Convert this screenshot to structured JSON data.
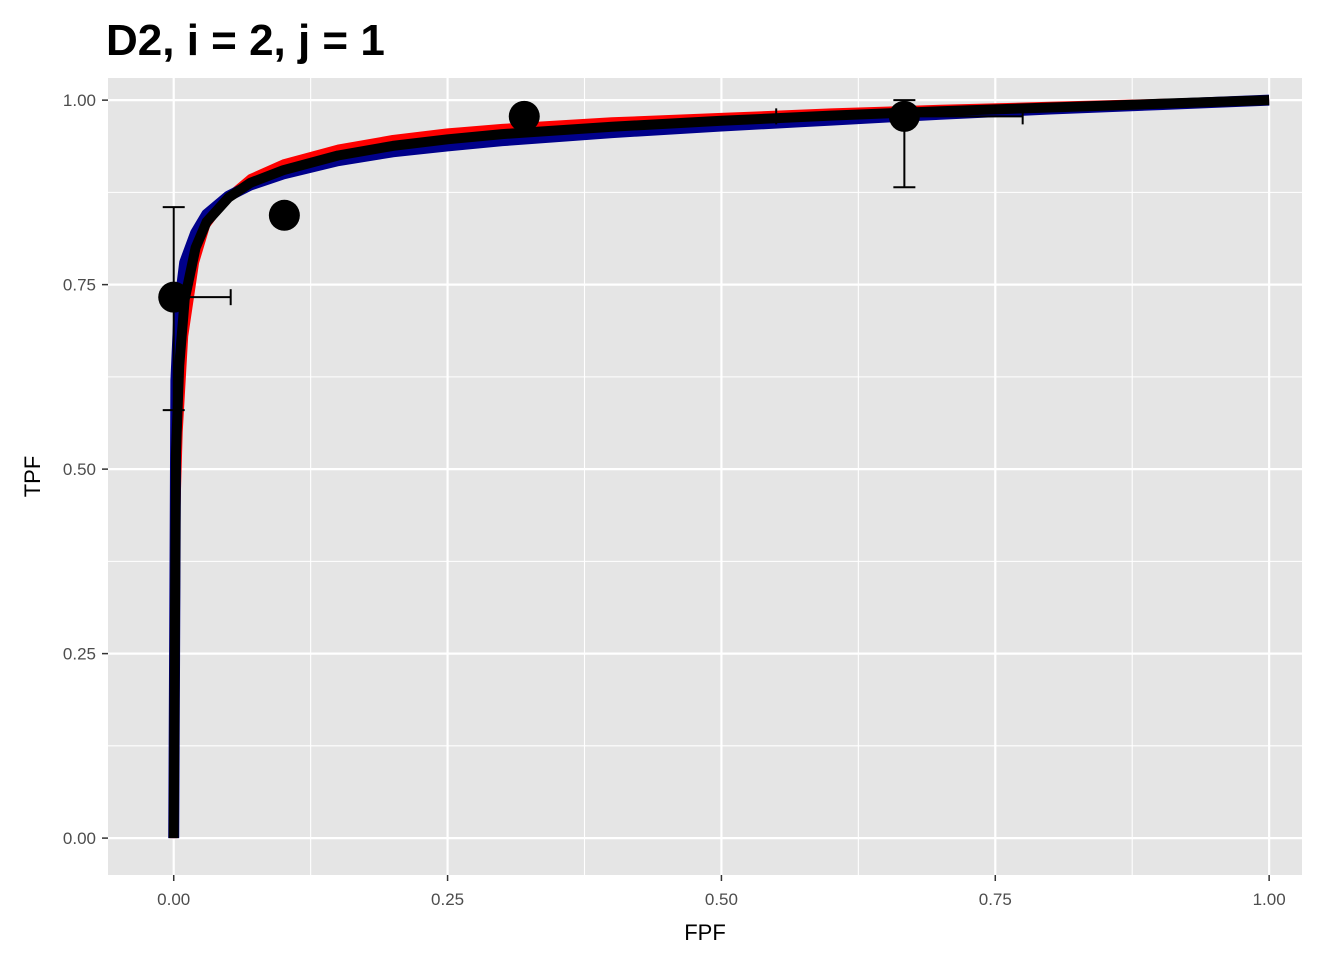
{
  "chart_data": {
    "type": "line",
    "title": "D2, i = 2, j = 1",
    "xlabel": "FPF",
    "ylabel": "TPF",
    "xlim": [
      -0.06,
      1.03
    ],
    "ylim": [
      -0.05,
      1.03
    ],
    "x_ticks": [
      0.0,
      0.25,
      0.5,
      0.75,
      1.0
    ],
    "x_tick_labels": [
      "0.00",
      "0.25",
      "0.50",
      "0.75",
      "1.00"
    ],
    "y_ticks": [
      0.0,
      0.25,
      0.5,
      0.75,
      1.0
    ],
    "y_tick_labels": [
      "0.00",
      "0.25",
      "0.50",
      "0.75",
      "1.00"
    ],
    "grid": true,
    "legend": "none",
    "colors": {
      "panel_background": "#e5e5e5",
      "grid_line": "#ffffff",
      "red_curve": "#ff0000",
      "blue_curve": "#00008b",
      "black_curve": "#000000",
      "points": "#000000"
    },
    "series": [
      {
        "color": "#ff0000",
        "x": [
          0.0,
          0.002,
          0.005,
          0.01,
          0.02,
          0.03,
          0.05,
          0.07,
          0.1,
          0.15,
          0.2,
          0.25,
          0.3,
          0.4,
          0.5,
          0.6,
          0.7,
          0.8,
          0.9,
          1.0
        ],
        "y": [
          0.0,
          0.4,
          0.55,
          0.68,
          0.78,
          0.83,
          0.87,
          0.895,
          0.915,
          0.935,
          0.948,
          0.957,
          0.963,
          0.972,
          0.978,
          0.984,
          0.989,
          0.993,
          0.997,
          1.0
        ]
      },
      {
        "color": "#00008b",
        "x": [
          0.0,
          0.002,
          0.005,
          0.01,
          0.02,
          0.03,
          0.05,
          0.07,
          0.1,
          0.15,
          0.2,
          0.25,
          0.3,
          0.4,
          0.5,
          0.6,
          0.7,
          0.8,
          0.9,
          1.0
        ],
        "y": [
          0.0,
          0.62,
          0.72,
          0.78,
          0.82,
          0.845,
          0.87,
          0.885,
          0.9,
          0.918,
          0.93,
          0.938,
          0.945,
          0.956,
          0.965,
          0.973,
          0.981,
          0.988,
          0.994,
          1.0
        ]
      },
      {
        "color": "#000000",
        "x": [
          0.0,
          0.002,
          0.005,
          0.01,
          0.02,
          0.03,
          0.05,
          0.07,
          0.1,
          0.15,
          0.2,
          0.25,
          0.3,
          0.4,
          0.5,
          0.6,
          0.7,
          0.8,
          0.9,
          1.0
        ],
        "y": [
          0.0,
          0.52,
          0.64,
          0.73,
          0.8,
          0.835,
          0.868,
          0.888,
          0.905,
          0.925,
          0.938,
          0.947,
          0.954,
          0.964,
          0.972,
          0.979,
          0.985,
          0.99,
          0.995,
          1.0
        ]
      }
    ],
    "points": [
      {
        "x": 0.0,
        "y": 0.733
      },
      {
        "x": 0.101,
        "y": 0.844
      },
      {
        "x": 0.32,
        "y": 0.978
      },
      {
        "x": 0.667,
        "y": 0.978
      }
    ],
    "error_bars": [
      {
        "x": 0.0,
        "y": 0.733,
        "y_low": 0.58,
        "y_high": 0.855,
        "x_low": 0.0,
        "x_high": 0.052
      },
      {
        "x": 0.667,
        "y": 0.978,
        "y_low": 0.882,
        "y_high": 1.0,
        "x_low": 0.55,
        "x_high": 0.775
      }
    ]
  }
}
